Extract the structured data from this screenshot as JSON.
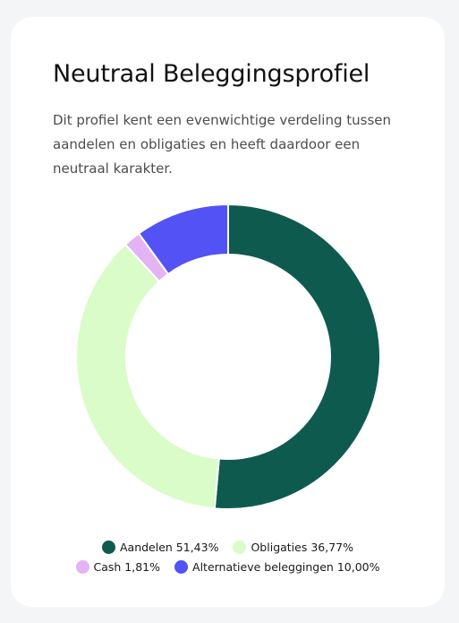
{
  "card": {
    "title": "Neutraal Beleggingsprofiel",
    "description": "Dit profiel kent een evenwichtige verdeling tussen aandelen en obligaties en heeft daardoor een neutraal karakter."
  },
  "chart_data": {
    "type": "pie",
    "title": "",
    "legend_position": "bottom",
    "series": [
      {
        "name": "Aandelen",
        "label": "Aandelen 51,43%",
        "value": 51.43,
        "color": "#0f5a4f"
      },
      {
        "name": "Obligaties",
        "label": "Obligaties 36,77%",
        "value": 36.77,
        "color": "#d9fcc9"
      },
      {
        "name": "Cash",
        "label": "Cash 1,81%",
        "value": 1.81,
        "color": "#e3b3f4"
      },
      {
        "name": "Alternatieve beleggingen",
        "label": "Alternatieve beleggingen 10,00%",
        "value": 10.0,
        "color": "#5252f5"
      }
    ]
  }
}
